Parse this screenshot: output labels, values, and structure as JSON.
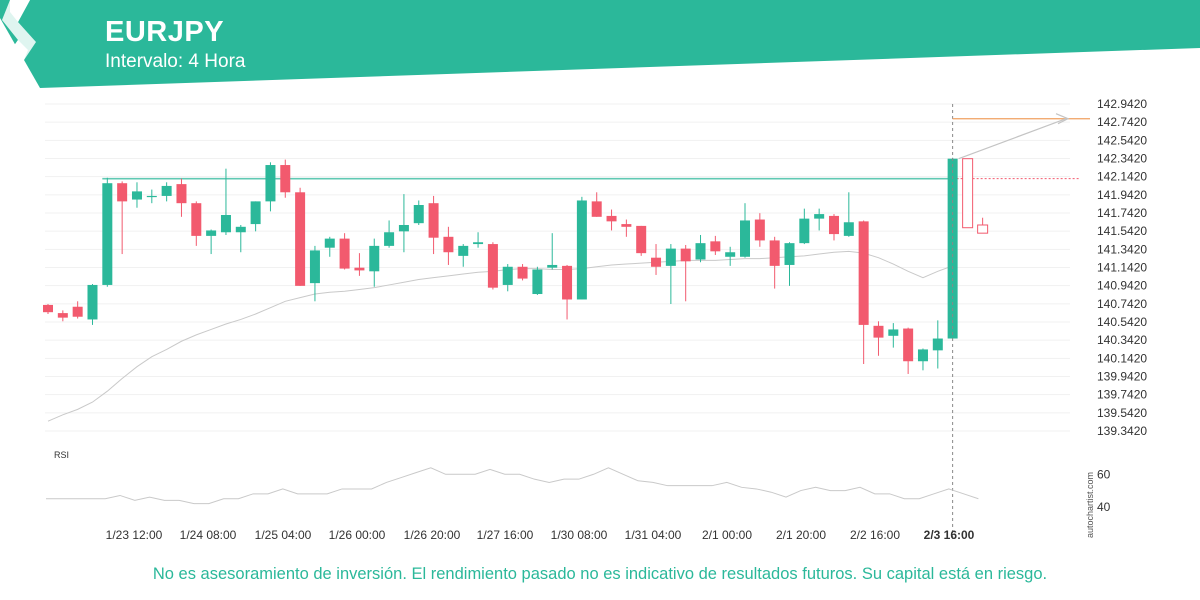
{
  "header": {
    "symbol": "EURJPY",
    "interval_label": "Intervalo: 4 Hora",
    "brand_color": "#2bb89a"
  },
  "disclaimer": "No es asesoramiento de inversión. El rendimiento pasado no es indicativo de resultados futuros. Su capital está en riesgo.",
  "credit": "autochartist.com",
  "chart_data": {
    "type": "candlestick",
    "symbol": "EURJPY",
    "interval": "4 Hora",
    "ylim": [
      139.342,
      142.942
    ],
    "y_ticks": [
      "142.9420",
      "142.7420",
      "142.5420",
      "142.3420",
      "142.1420",
      "141.9420",
      "141.7420",
      "141.5420",
      "141.3420",
      "141.1420",
      "140.9420",
      "140.7420",
      "140.5420",
      "140.3420",
      "140.1420",
      "139.9420",
      "139.7420",
      "139.5420",
      "139.3420"
    ],
    "x_ticks": [
      "1/23 12:00",
      "1/24 08:00",
      "1/25 04:00",
      "1/26 00:00",
      "1/26 20:00",
      "1/27 16:00",
      "1/30 08:00",
      "1/31 04:00",
      "2/1 00:00",
      "2/1 20:00",
      "2/2 16:00",
      "2/3 16:00"
    ],
    "up_color": "#2bb89a",
    "down_color": "#f25a6e",
    "candles": [
      {
        "o": 140.73,
        "h": 140.74,
        "l": 140.63,
        "c": 140.65
      },
      {
        "o": 140.64,
        "h": 140.67,
        "l": 140.55,
        "c": 140.59
      },
      {
        "o": 140.71,
        "h": 140.77,
        "l": 140.58,
        "c": 140.6
      },
      {
        "o": 140.57,
        "h": 140.96,
        "l": 140.51,
        "c": 140.95
      },
      {
        "o": 140.95,
        "h": 142.13,
        "l": 140.93,
        "c": 142.07
      },
      {
        "o": 142.07,
        "h": 142.09,
        "l": 141.29,
        "c": 141.87
      },
      {
        "o": 141.89,
        "h": 142.08,
        "l": 141.8,
        "c": 141.98
      },
      {
        "o": 141.92,
        "h": 142.0,
        "l": 141.85,
        "c": 141.93
      },
      {
        "o": 141.93,
        "h": 142.08,
        "l": 141.87,
        "c": 142.04
      },
      {
        "o": 142.06,
        "h": 142.12,
        "l": 141.7,
        "c": 141.85
      },
      {
        "o": 141.85,
        "h": 141.87,
        "l": 141.38,
        "c": 141.49
      },
      {
        "o": 141.49,
        "h": 141.56,
        "l": 141.29,
        "c": 141.55
      },
      {
        "o": 141.53,
        "h": 142.23,
        "l": 141.5,
        "c": 141.72
      },
      {
        "o": 141.53,
        "h": 141.61,
        "l": 141.31,
        "c": 141.59
      },
      {
        "o": 141.62,
        "h": 141.87,
        "l": 141.54,
        "c": 141.87
      },
      {
        "o": 141.87,
        "h": 142.3,
        "l": 141.76,
        "c": 142.27
      },
      {
        "o": 142.27,
        "h": 142.33,
        "l": 141.91,
        "c": 141.97
      },
      {
        "o": 141.97,
        "h": 142.02,
        "l": 140.94,
        "c": 140.94
      },
      {
        "o": 140.97,
        "h": 141.38,
        "l": 140.77,
        "c": 141.33
      },
      {
        "o": 141.36,
        "h": 141.48,
        "l": 141.26,
        "c": 141.46
      },
      {
        "o": 141.46,
        "h": 141.52,
        "l": 141.12,
        "c": 141.13
      },
      {
        "o": 141.14,
        "h": 141.3,
        "l": 141.05,
        "c": 141.11
      },
      {
        "o": 141.1,
        "h": 141.46,
        "l": 140.93,
        "c": 141.38
      },
      {
        "o": 141.38,
        "h": 141.66,
        "l": 141.36,
        "c": 141.53
      },
      {
        "o": 141.54,
        "h": 141.95,
        "l": 141.31,
        "c": 141.61
      },
      {
        "o": 141.63,
        "h": 141.88,
        "l": 141.61,
        "c": 141.83
      },
      {
        "o": 141.85,
        "h": 141.93,
        "l": 141.29,
        "c": 141.47
      },
      {
        "o": 141.48,
        "h": 141.59,
        "l": 141.17,
        "c": 141.31
      },
      {
        "o": 141.27,
        "h": 141.4,
        "l": 141.15,
        "c": 141.38
      },
      {
        "o": 141.4,
        "h": 141.53,
        "l": 141.36,
        "c": 141.42
      },
      {
        "o": 141.4,
        "h": 141.42,
        "l": 140.9,
        "c": 140.92
      },
      {
        "o": 140.95,
        "h": 141.18,
        "l": 140.88,
        "c": 141.15
      },
      {
        "o": 141.15,
        "h": 141.18,
        "l": 141.0,
        "c": 141.02
      },
      {
        "o": 140.85,
        "h": 141.15,
        "l": 140.84,
        "c": 141.12
      },
      {
        "o": 141.14,
        "h": 141.52,
        "l": 141.12,
        "c": 141.17
      },
      {
        "o": 141.16,
        "h": 141.17,
        "l": 140.57,
        "c": 140.79
      },
      {
        "o": 140.79,
        "h": 141.92,
        "l": 140.79,
        "c": 141.88
      },
      {
        "o": 141.87,
        "h": 141.97,
        "l": 141.7,
        "c": 141.7
      },
      {
        "o": 141.71,
        "h": 141.78,
        "l": 141.55,
        "c": 141.65
      },
      {
        "o": 141.62,
        "h": 141.67,
        "l": 141.48,
        "c": 141.59
      },
      {
        "o": 141.6,
        "h": 141.6,
        "l": 141.27,
        "c": 141.3
      },
      {
        "o": 141.25,
        "h": 141.4,
        "l": 141.06,
        "c": 141.15
      },
      {
        "o": 141.16,
        "h": 141.4,
        "l": 140.74,
        "c": 141.35
      },
      {
        "o": 141.35,
        "h": 141.39,
        "l": 140.77,
        "c": 141.21
      },
      {
        "o": 141.23,
        "h": 141.5,
        "l": 141.2,
        "c": 141.41
      },
      {
        "o": 141.43,
        "h": 141.49,
        "l": 141.28,
        "c": 141.32
      },
      {
        "o": 141.26,
        "h": 141.37,
        "l": 141.16,
        "c": 141.31
      },
      {
        "o": 141.26,
        "h": 141.85,
        "l": 141.25,
        "c": 141.66
      },
      {
        "o": 141.67,
        "h": 141.74,
        "l": 141.37,
        "c": 141.44
      },
      {
        "o": 141.44,
        "h": 141.48,
        "l": 140.91,
        "c": 141.16
      },
      {
        "o": 141.17,
        "h": 141.42,
        "l": 140.94,
        "c": 141.41
      },
      {
        "o": 141.41,
        "h": 141.79,
        "l": 141.4,
        "c": 141.68
      },
      {
        "o": 141.68,
        "h": 141.79,
        "l": 141.55,
        "c": 141.73
      },
      {
        "o": 141.71,
        "h": 141.73,
        "l": 141.44,
        "c": 141.51
      },
      {
        "o": 141.49,
        "h": 141.97,
        "l": 141.48,
        "c": 141.64
      },
      {
        "o": 141.65,
        "h": 141.66,
        "l": 140.08,
        "c": 140.51
      },
      {
        "o": 140.5,
        "h": 140.55,
        "l": 140.17,
        "c": 140.37
      },
      {
        "o": 140.39,
        "h": 140.53,
        "l": 140.26,
        "c": 140.46
      },
      {
        "o": 140.47,
        "h": 140.48,
        "l": 139.97,
        "c": 140.11
      },
      {
        "o": 140.11,
        "h": 140.25,
        "l": 140.01,
        "c": 140.24
      },
      {
        "o": 140.23,
        "h": 140.56,
        "l": 140.03,
        "c": 140.36
      },
      {
        "o": 140.36,
        "h": 142.35,
        "l": 140.36,
        "c": 142.34
      }
    ],
    "moving_average": [
      139.45,
      139.52,
      139.58,
      139.66,
      139.78,
      139.92,
      140.05,
      140.16,
      140.24,
      140.33,
      140.4,
      140.46,
      140.52,
      140.57,
      140.63,
      140.7,
      140.77,
      140.81,
      140.85,
      140.87,
      140.88,
      140.9,
      140.92,
      140.95,
      140.98,
      141.01,
      141.03,
      141.05,
      141.07,
      141.09,
      141.1,
      141.12,
      141.13,
      141.13,
      141.12,
      141.12,
      141.13,
      141.15,
      141.17,
      141.18,
      141.19,
      141.2,
      141.21,
      141.22,
      141.22,
      141.22,
      141.23,
      141.24,
      141.24,
      141.25,
      141.26,
      141.27,
      141.29,
      141.31,
      141.32,
      141.3,
      141.25,
      141.18,
      141.1,
      141.03,
      141.1,
      141.16
    ],
    "resistance_level": 142.12,
    "forecast": {
      "from_price": 142.34,
      "to_price": 142.78,
      "projection_level": 142.78
    },
    "forecast_candles": [
      {
        "o": 142.34,
        "h": 142.34,
        "l": 141.58,
        "c": 141.58
      },
      {
        "o": 141.61,
        "h": 141.69,
        "l": 141.52,
        "c": 141.52
      }
    ],
    "rsi": {
      "label": "RSI",
      "ticks": [
        "60",
        "40"
      ],
      "ylim": [
        35,
        70
      ],
      "values": [
        45,
        45,
        45,
        45,
        45,
        47,
        44,
        46,
        44,
        44,
        42,
        42,
        45,
        45,
        48,
        48,
        51,
        48,
        48,
        48,
        51,
        51,
        51,
        55,
        58,
        61,
        64,
        60,
        60,
        60,
        63,
        60,
        60,
        57,
        55,
        57,
        57,
        60,
        64,
        60,
        56,
        55,
        53,
        53,
        53,
        53,
        55,
        52,
        51,
        49,
        46,
        50,
        52,
        50,
        50,
        52,
        48,
        48,
        45,
        45,
        48,
        51,
        48,
        45
      ]
    }
  }
}
